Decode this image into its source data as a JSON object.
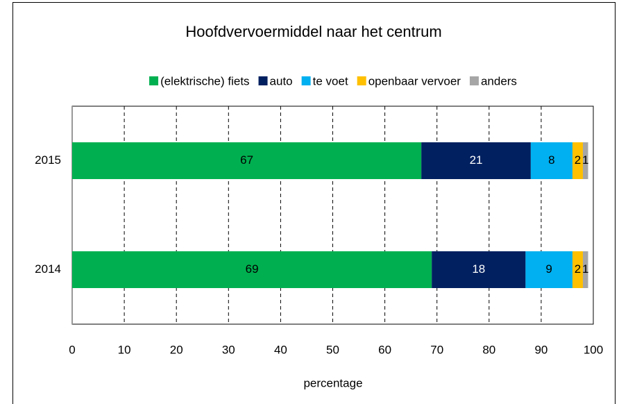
{
  "chart_data": {
    "type": "stacked_barh",
    "title": "Hoofdvervoermiddel naar het centrum",
    "categories": [
      "2015",
      "2014"
    ],
    "series": [
      {
        "name": "(elektrische) fiets",
        "color": "#00b050",
        "label_color": "#000000",
        "values": [
          67,
          69
        ]
      },
      {
        "name": "auto",
        "color": "#002060",
        "label_color": "#ffffff",
        "values": [
          21,
          18
        ]
      },
      {
        "name": "te voet",
        "color": "#00b0f0",
        "label_color": "#000000",
        "values": [
          8,
          9
        ]
      },
      {
        "name": "openbaar vervoer",
        "color": "#ffc000",
        "label_color": "#000000",
        "values": [
          2,
          2
        ]
      },
      {
        "name": "anders",
        "color": "#a6a6a6",
        "label_color": "#000000",
        "values": [
          1,
          1
        ]
      }
    ],
    "x_label": "percentage",
    "xlim": [
      0,
      100
    ],
    "xticks": [
      0,
      10,
      20,
      30,
      40,
      50,
      60,
      70,
      80,
      90,
      100
    ],
    "grid": true,
    "legend": "top"
  }
}
